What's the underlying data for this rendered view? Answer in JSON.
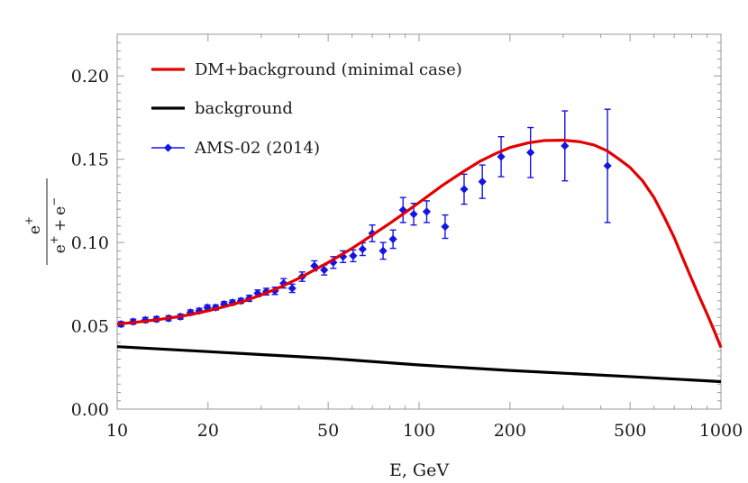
{
  "chart_data": {
    "type": "scatter",
    "xlabel": "E, GeV",
    "ylabel": {
      "numerator": "e",
      "numerator_sup": "+",
      "denominator_parts": [
        {
          "text": "e",
          "sup": "+"
        },
        {
          "text": "+",
          "sup": ""
        },
        {
          "text": "e",
          "sup": "−"
        }
      ]
    },
    "x_scale": "log",
    "xlim": [
      10,
      1000
    ],
    "ylim": [
      0,
      0.225
    ],
    "x_ticks": [
      10,
      20,
      50,
      100,
      200,
      500,
      1000
    ],
    "x_tick_labels": [
      "10",
      "20",
      "50",
      "100",
      "200",
      "500",
      "1000"
    ],
    "y_ticks": [
      0,
      0.05,
      0.1,
      0.15,
      0.2
    ],
    "y_tick_labels": [
      "0.00",
      "0.05",
      "0.10",
      "0.15",
      "0.20"
    ],
    "grid": false,
    "legend_position": "top-left",
    "colors": {
      "dm": "#e30000",
      "background": "#000000",
      "ams": "#1414e6"
    },
    "series": [
      {
        "name": "DM+background (minimal case)",
        "kind": "line",
        "x": [
          10,
          12,
          14,
          16,
          18,
          20,
          23,
          26,
          30,
          35,
          40,
          45,
          50,
          60,
          70,
          80,
          90,
          100,
          120,
          140,
          160,
          180,
          200,
          230,
          260,
          300,
          340,
          380,
          420,
          460,
          500,
          550,
          600,
          650,
          700,
          750,
          800,
          850,
          900,
          950,
          1000
        ],
        "y": [
          0.051,
          0.0525,
          0.054,
          0.0555,
          0.0572,
          0.059,
          0.0618,
          0.0645,
          0.0685,
          0.0735,
          0.0785,
          0.0835,
          0.088,
          0.0965,
          0.1045,
          0.1115,
          0.118,
          0.124,
          0.1345,
          0.1425,
          0.149,
          0.1535,
          0.157,
          0.1598,
          0.1612,
          0.1614,
          0.1605,
          0.1585,
          0.155,
          0.15,
          0.145,
          0.137,
          0.127,
          0.115,
          0.103,
          0.09,
          0.078,
          0.067,
          0.057,
          0.047,
          0.037
        ]
      },
      {
        "name": "background",
        "kind": "line",
        "x": [
          10,
          20,
          50,
          100,
          200,
          500,
          1000
        ],
        "y": [
          0.0375,
          0.0345,
          0.0305,
          0.0265,
          0.0232,
          0.0195,
          0.0165
        ]
      },
      {
        "name": "AMS-02 (2014)",
        "kind": "errorbar",
        "x": [
          10.3,
          11.3,
          12.4,
          13.5,
          14.8,
          16.2,
          17.5,
          18.7,
          19.9,
          21.2,
          22.6,
          24.1,
          25.7,
          27.4,
          29.2,
          31.2,
          33.3,
          35.6,
          38.0,
          41.0,
          45.0,
          48.5,
          52.0,
          56.0,
          60.5,
          65.0,
          70.0,
          76.0,
          82.0,
          88.5,
          96.0,
          106.0,
          122.0,
          141.0,
          162.0,
          187.0,
          234.0,
          304.0,
          421.0
        ],
        "y": [
          0.051,
          0.0525,
          0.0535,
          0.054,
          0.0545,
          0.0555,
          0.058,
          0.059,
          0.061,
          0.061,
          0.063,
          0.064,
          0.065,
          0.0665,
          0.0695,
          0.0705,
          0.071,
          0.0755,
          0.0725,
          0.0795,
          0.086,
          0.0835,
          0.088,
          0.0915,
          0.092,
          0.096,
          0.1055,
          0.095,
          0.102,
          0.1195,
          0.117,
          0.1185,
          0.1095,
          0.132,
          0.1365,
          0.1515,
          0.154,
          0.158,
          0.146
        ],
        "err": [
          0.0015,
          0.0015,
          0.0015,
          0.0015,
          0.0015,
          0.0015,
          0.0015,
          0.0015,
          0.0015,
          0.0015,
          0.0015,
          0.0015,
          0.0015,
          0.0018,
          0.002,
          0.002,
          0.0022,
          0.0028,
          0.0025,
          0.0028,
          0.003,
          0.003,
          0.0035,
          0.0035,
          0.0035,
          0.0038,
          0.005,
          0.005,
          0.0055,
          0.0075,
          0.0065,
          0.0065,
          0.007,
          0.009,
          0.01,
          0.012,
          0.015,
          0.021,
          0.034
        ]
      }
    ]
  }
}
